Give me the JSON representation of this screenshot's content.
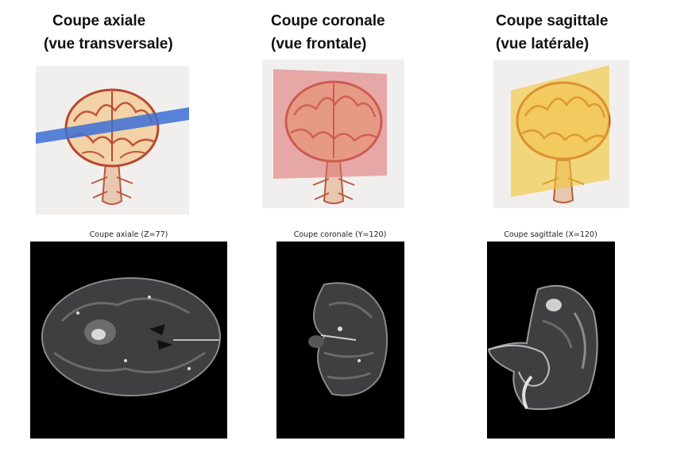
{
  "views": [
    {
      "heading_line1": "Coupe axiale",
      "heading_line2": "(vue transversale)",
      "plane_color": "#3d6fd6",
      "scan_title": "Coupe axiale (Z=77)"
    },
    {
      "heading_line1": "Coupe coronale",
      "heading_line2": "(vue frontale)",
      "plane_color": "#dd6b6b",
      "scan_title": "Coupe coronale (Y=120)"
    },
    {
      "heading_line1": "Coupe sagittale",
      "heading_line2": "(vue latérale)",
      "plane_color": "#f2c531",
      "scan_title": "Coupe sagittale (X=120)"
    }
  ]
}
